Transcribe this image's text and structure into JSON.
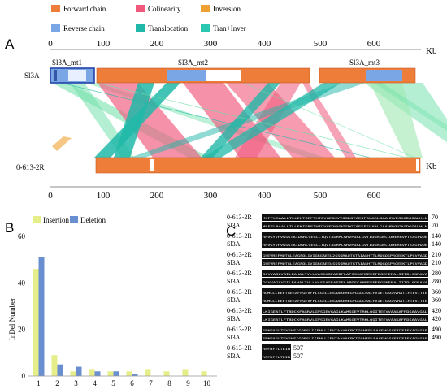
{
  "panel_a": {
    "label": "A",
    "kb_label": "Kb",
    "scale_max": 700,
    "ticks": [
      0,
      100,
      200,
      300,
      400,
      500,
      600
    ],
    "legend": [
      {
        "label": "Forward chain",
        "color": "#ee7d3a"
      },
      {
        "label": "Colinearity",
        "color": "#f0587c"
      },
      {
        "label": "Inversion",
        "color": "#f0a030"
      },
      {
        "label": "Reverse chain",
        "color": "#7aa6e6"
      },
      {
        "label": "Translocation",
        "color": "#20b8a8"
      },
      {
        "label": "Tran+Inver",
        "color": "#2ac8b0"
      }
    ],
    "top_genome": {
      "name": "Sl3A",
      "contigs": [
        {
          "name": "Sl3A_mt1",
          "start": 0,
          "end": 85
        },
        {
          "name": "Sl3A_mt2",
          "start": 85,
          "end": 480
        },
        {
          "name": "Sl3A_mt3",
          "start": 500,
          "end": 690
        }
      ]
    },
    "bottom_genome": {
      "name": "0-613-2R",
      "start": 80,
      "end": 690
    }
  },
  "panel_b": {
    "label": "B",
    "chart_data": {
      "type": "bar",
      "categories": [
        "1",
        "2",
        "3",
        "4",
        "5",
        "6",
        "7",
        "8",
        "9",
        "10"
      ],
      "series": [
        {
          "name": "Insertion",
          "color": "#e6ee8a",
          "values": [
            46,
            9,
            2,
            3,
            2,
            2,
            3,
            2,
            3,
            2
          ]
        },
        {
          "name": "Deletion",
          "color": "#6a8fd0",
          "values": [
            51,
            5,
            4,
            2,
            2,
            1,
            0,
            0,
            0,
            0
          ]
        }
      ],
      "ylabel": "InDel Number",
      "ylim": [
        0,
        60
      ],
      "yticks": [
        0,
        20,
        40,
        60
      ]
    }
  },
  "panel_c": {
    "label": "C",
    "blocks": [
      {
        "rows": [
          {
            "name": "0-613-2R",
            "seq": "MSFFLRAALLTLLEKTGRFTHTQVGEDHVVGGDGTAESFSLARLGAAHRVEGAGDGGALHLN",
            "end": "70"
          },
          {
            "name": "Sl3A",
            "seq": "MSFFLRAALLTLLEKTGRFTHTQVGEDHVVGGDGTAESFSLARLGAAHRVEGAGDGGALHLN",
            "end": "70"
          }
        ]
      },
      {
        "rows": [
          {
            "name": "0-613-2R",
            "seq": "RPVGYVFVGSGTAIDGRLVEGCCTQVTAGRMLGRVPDALGVTIDGRGASIDHERRVPTEAGPDDE",
            "end": "140"
          },
          {
            "name": "Sl3A",
            "seq": "RPVGYVFVGSGTAIDGRLVEGCCTQVTAGRMLGRVPDALGVTIDGRGASIDHERRVPTEAGPDDE",
            "end": "140"
          }
        ]
      },
      {
        "rows": [
          {
            "name": "0-613-2R",
            "seq": "GSEVREFMQTGLEAGFDLIVIGRGAEEL2SSGRAQTGTAIALHTTLRQGQSPRCEEKTLPCVVAGD",
            "end": "210"
          },
          {
            "name": "Sl3A",
            "seq": "GSEVREFMQTGLEAGFDLIVIGRGAEELSSSGRAQTGTAIALHTTLRQGQSPRCEEKTLPCVVAGD",
            "end": "210"
          }
        ]
      },
      {
        "rows": [
          {
            "name": "0-613-2R",
            "seq": "GCVVAGLVGILEAHALTVLLVASEAGFAEDFLAPGSCAMSEEEFEGEMERALIITDLSGRAVA",
            "end": "280"
          },
          {
            "name": "Sl3A",
            "seq": "GCVVAGLVGILEAHALTVLLVASEAGFAEDFLAPGSCAMSEEEFEGEMERALIITDLSGRAVA",
            "end": "280"
          }
        ]
      },
      {
        "rows": [
          {
            "name": "0-613-2R",
            "seq": "RGMLLLEEFTGEEAFPGEVFFLSGELLEEAAREHEGVGGLLFALFVIETGAGRVRATIFTEVITTE",
            "end": "360"
          },
          {
            "name": "Sl3A",
            "seq": "RGMLLLEEFTGEEAFPGEVFFLSGELLEEAAREHEGVGGLLFALFVIETGAGRVRATIFTEVITTE",
            "end": "360"
          }
        ]
      },
      {
        "rows": [
          {
            "name": "0-613-2R",
            "seq": "LKIGEATLFTBDCXFAGRVLGVSGEVGAGLKAMSGEVTRKLQQITEEVVAAKAFRDSAAVGAL",
            "end": "420"
          },
          {
            "name": "Sl3A",
            "seq": "LKIGEATLFTBDCXFAGRVLGVSGEVGAGLKAMSGEVTRKLQQITEEVVAAKAFRDSAAVGAL",
            "end": "420"
          }
        ]
      },
      {
        "rows": [
          {
            "name": "0-613-2R",
            "seq": "EENGAELTEVEHFIGDFSLIIEHLLIEVTAAVAKPCIGGHEELRAGEHGSGEIDEEEKAGLGAE",
            "end": "490"
          },
          {
            "name": "Sl3A",
            "seq": "EENGAELTEVEHFIGDFSLIIEHLLIEVTAAVAKPCIGGHEELRAGEHGSGEIDEEEKAGLGAE",
            "end": "490"
          }
        ]
      },
      {
        "rows": [
          {
            "name": "0-613-2R",
            "seq": "RFFHFELTEIN",
            "end": "507"
          },
          {
            "name": "Sl3A",
            "seq": "RFFHFELTEIN",
            "end": "507"
          }
        ]
      }
    ]
  }
}
